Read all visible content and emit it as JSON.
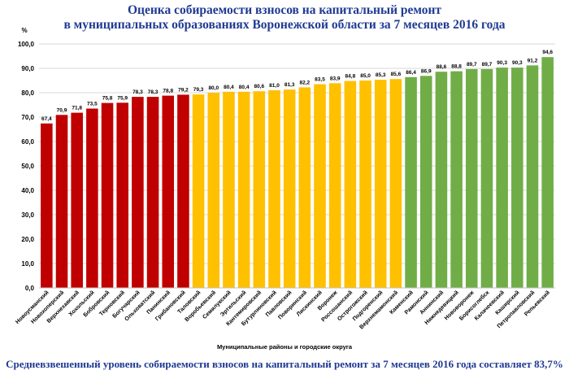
{
  "chart_data": {
    "type": "bar",
    "title_line1": "Оценка собираемости взносов на капитальный ремонт",
    "title_line2": "в муниципальных образованиях Воронежской области за 7 месяцев 2016 года",
    "ylabel": "%",
    "xlabel": "Муниципальные районы и городские округа",
    "ylim": [
      0,
      100
    ],
    "yticks": [
      0,
      10,
      20,
      30,
      40,
      50,
      60,
      70,
      80,
      90,
      100
    ],
    "ytick_labels": [
      "0,0",
      "10,0",
      "20,0",
      "30,0",
      "40,0",
      "50,0",
      "60,0",
      "70,0",
      "80,0",
      "90,0",
      "100,0"
    ],
    "grid": true,
    "categories": [
      "Новоусманский",
      "Новохоперский",
      "Верхнехавский",
      "Хохольский",
      "Бобровский",
      "Терновский",
      "Богучарский",
      "Ольховатский",
      "Панинский",
      "Грибановский",
      "Таловский",
      "Воробьевский",
      "Семилукский",
      "Эртильский",
      "Кантемировский",
      "Бутурлиновский",
      "Павловский",
      "Поворинский",
      "Лискинский",
      "Воронеж",
      "Россошанский",
      "Острогожский",
      "Подгоренский",
      "Верхнемамонский",
      "Каменский",
      "Рамонский",
      "Аннинский",
      "Нижнедевицкий",
      "Нововоронеж",
      "Борисоглебск",
      "Калачеевский",
      "Каширский",
      "Петропавловский",
      "Репьевский"
    ],
    "values": [
      67.4,
      70.9,
      71.8,
      73.5,
      75.8,
      75.9,
      78.3,
      78.3,
      78.8,
      79.2,
      79.3,
      80.0,
      80.4,
      80.4,
      80.6,
      81.0,
      81.3,
      82.2,
      83.5,
      83.9,
      84.8,
      85.0,
      85.3,
      85.6,
      86.4,
      86.9,
      88.6,
      88.8,
      89.7,
      89.7,
      90.3,
      90.3,
      91.2,
      94.6
    ],
    "value_labels": [
      "67,4",
      "70,9",
      "71,8",
      "73,5",
      "75,8",
      "75,9",
      "78,3",
      "78,3",
      "78,8",
      "79,2",
      "79,3",
      "80,0",
      "80,4",
      "80,4",
      "80,6",
      "81,0",
      "81,3",
      "82,2",
      "83,5",
      "83,9",
      "84,8",
      "85,0",
      "85,3",
      "85,6",
      "86,4",
      "86,9",
      "88,6",
      "88,8",
      "89,7",
      "89,7",
      "90,3",
      "90,3",
      "91,2",
      "94,6"
    ],
    "bar_colors": [
      "#c00000",
      "#c00000",
      "#c00000",
      "#c00000",
      "#c00000",
      "#c00000",
      "#c00000",
      "#c00000",
      "#c00000",
      "#c00000",
      "#ffc000",
      "#ffc000",
      "#ffc000",
      "#ffc000",
      "#ffc000",
      "#ffc000",
      "#ffc000",
      "#ffc000",
      "#ffc000",
      "#ffc000",
      "#ffc000",
      "#ffc000",
      "#ffc000",
      "#ffc000",
      "#70ad47",
      "#70ad47",
      "#70ad47",
      "#70ad47",
      "#70ad47",
      "#70ad47",
      "#70ad47",
      "#70ad47",
      "#70ad47",
      "#70ad47"
    ],
    "footer": "Средневзвешенный уровень собираемости взносов на капитальный ремонт за 7 месяцев 2016 года составляет 83,7%"
  },
  "colors": {
    "title": "#1f3a93",
    "red": "#c00000",
    "yellow": "#ffc000",
    "green": "#70ad47",
    "grid": "#d9d9d9",
    "axis_text": "#000000"
  }
}
